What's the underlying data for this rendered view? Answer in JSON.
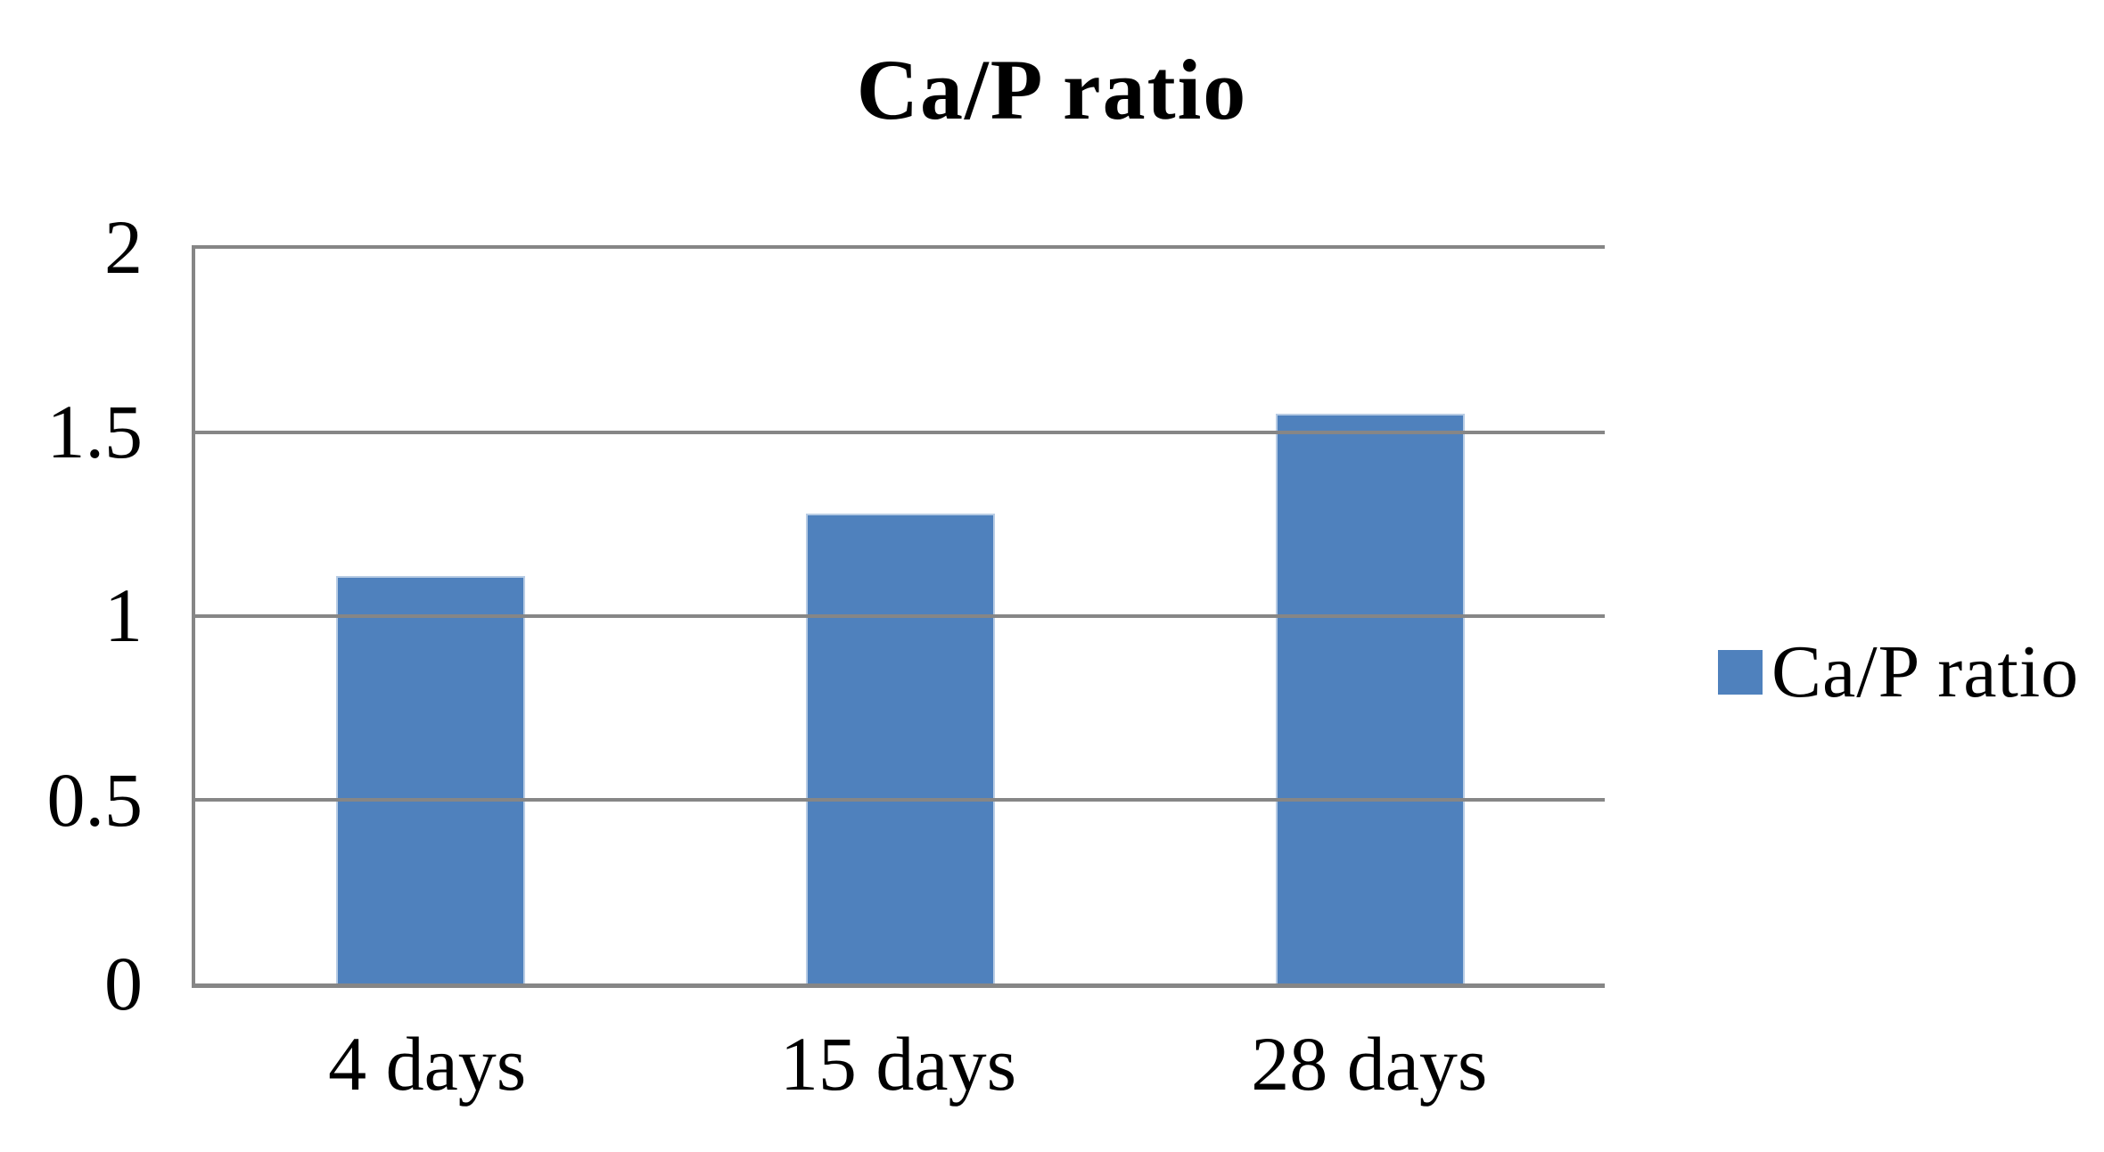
{
  "chart_data": {
    "type": "bar",
    "title": "Ca/P ratio",
    "categories": [
      "4 days",
      "15 days",
      "28 days"
    ],
    "series": [
      {
        "name": "Ca/P ratio",
        "values": [
          1.11,
          1.28,
          1.55
        ]
      }
    ],
    "xlabel": "",
    "ylabel": "",
    "ylim": [
      0,
      2
    ],
    "yticks": [
      0,
      0.5,
      1,
      1.5,
      2
    ],
    "ytick_labels": [
      "0",
      "0.5",
      "1",
      "1.5",
      "2"
    ],
    "grid": true,
    "legend_position": "right",
    "colors": {
      "bar": "#4F81BD",
      "bar_edge": "#B8CCE4",
      "axis": "#868686",
      "grid": "#868686",
      "text": "#000000"
    }
  }
}
